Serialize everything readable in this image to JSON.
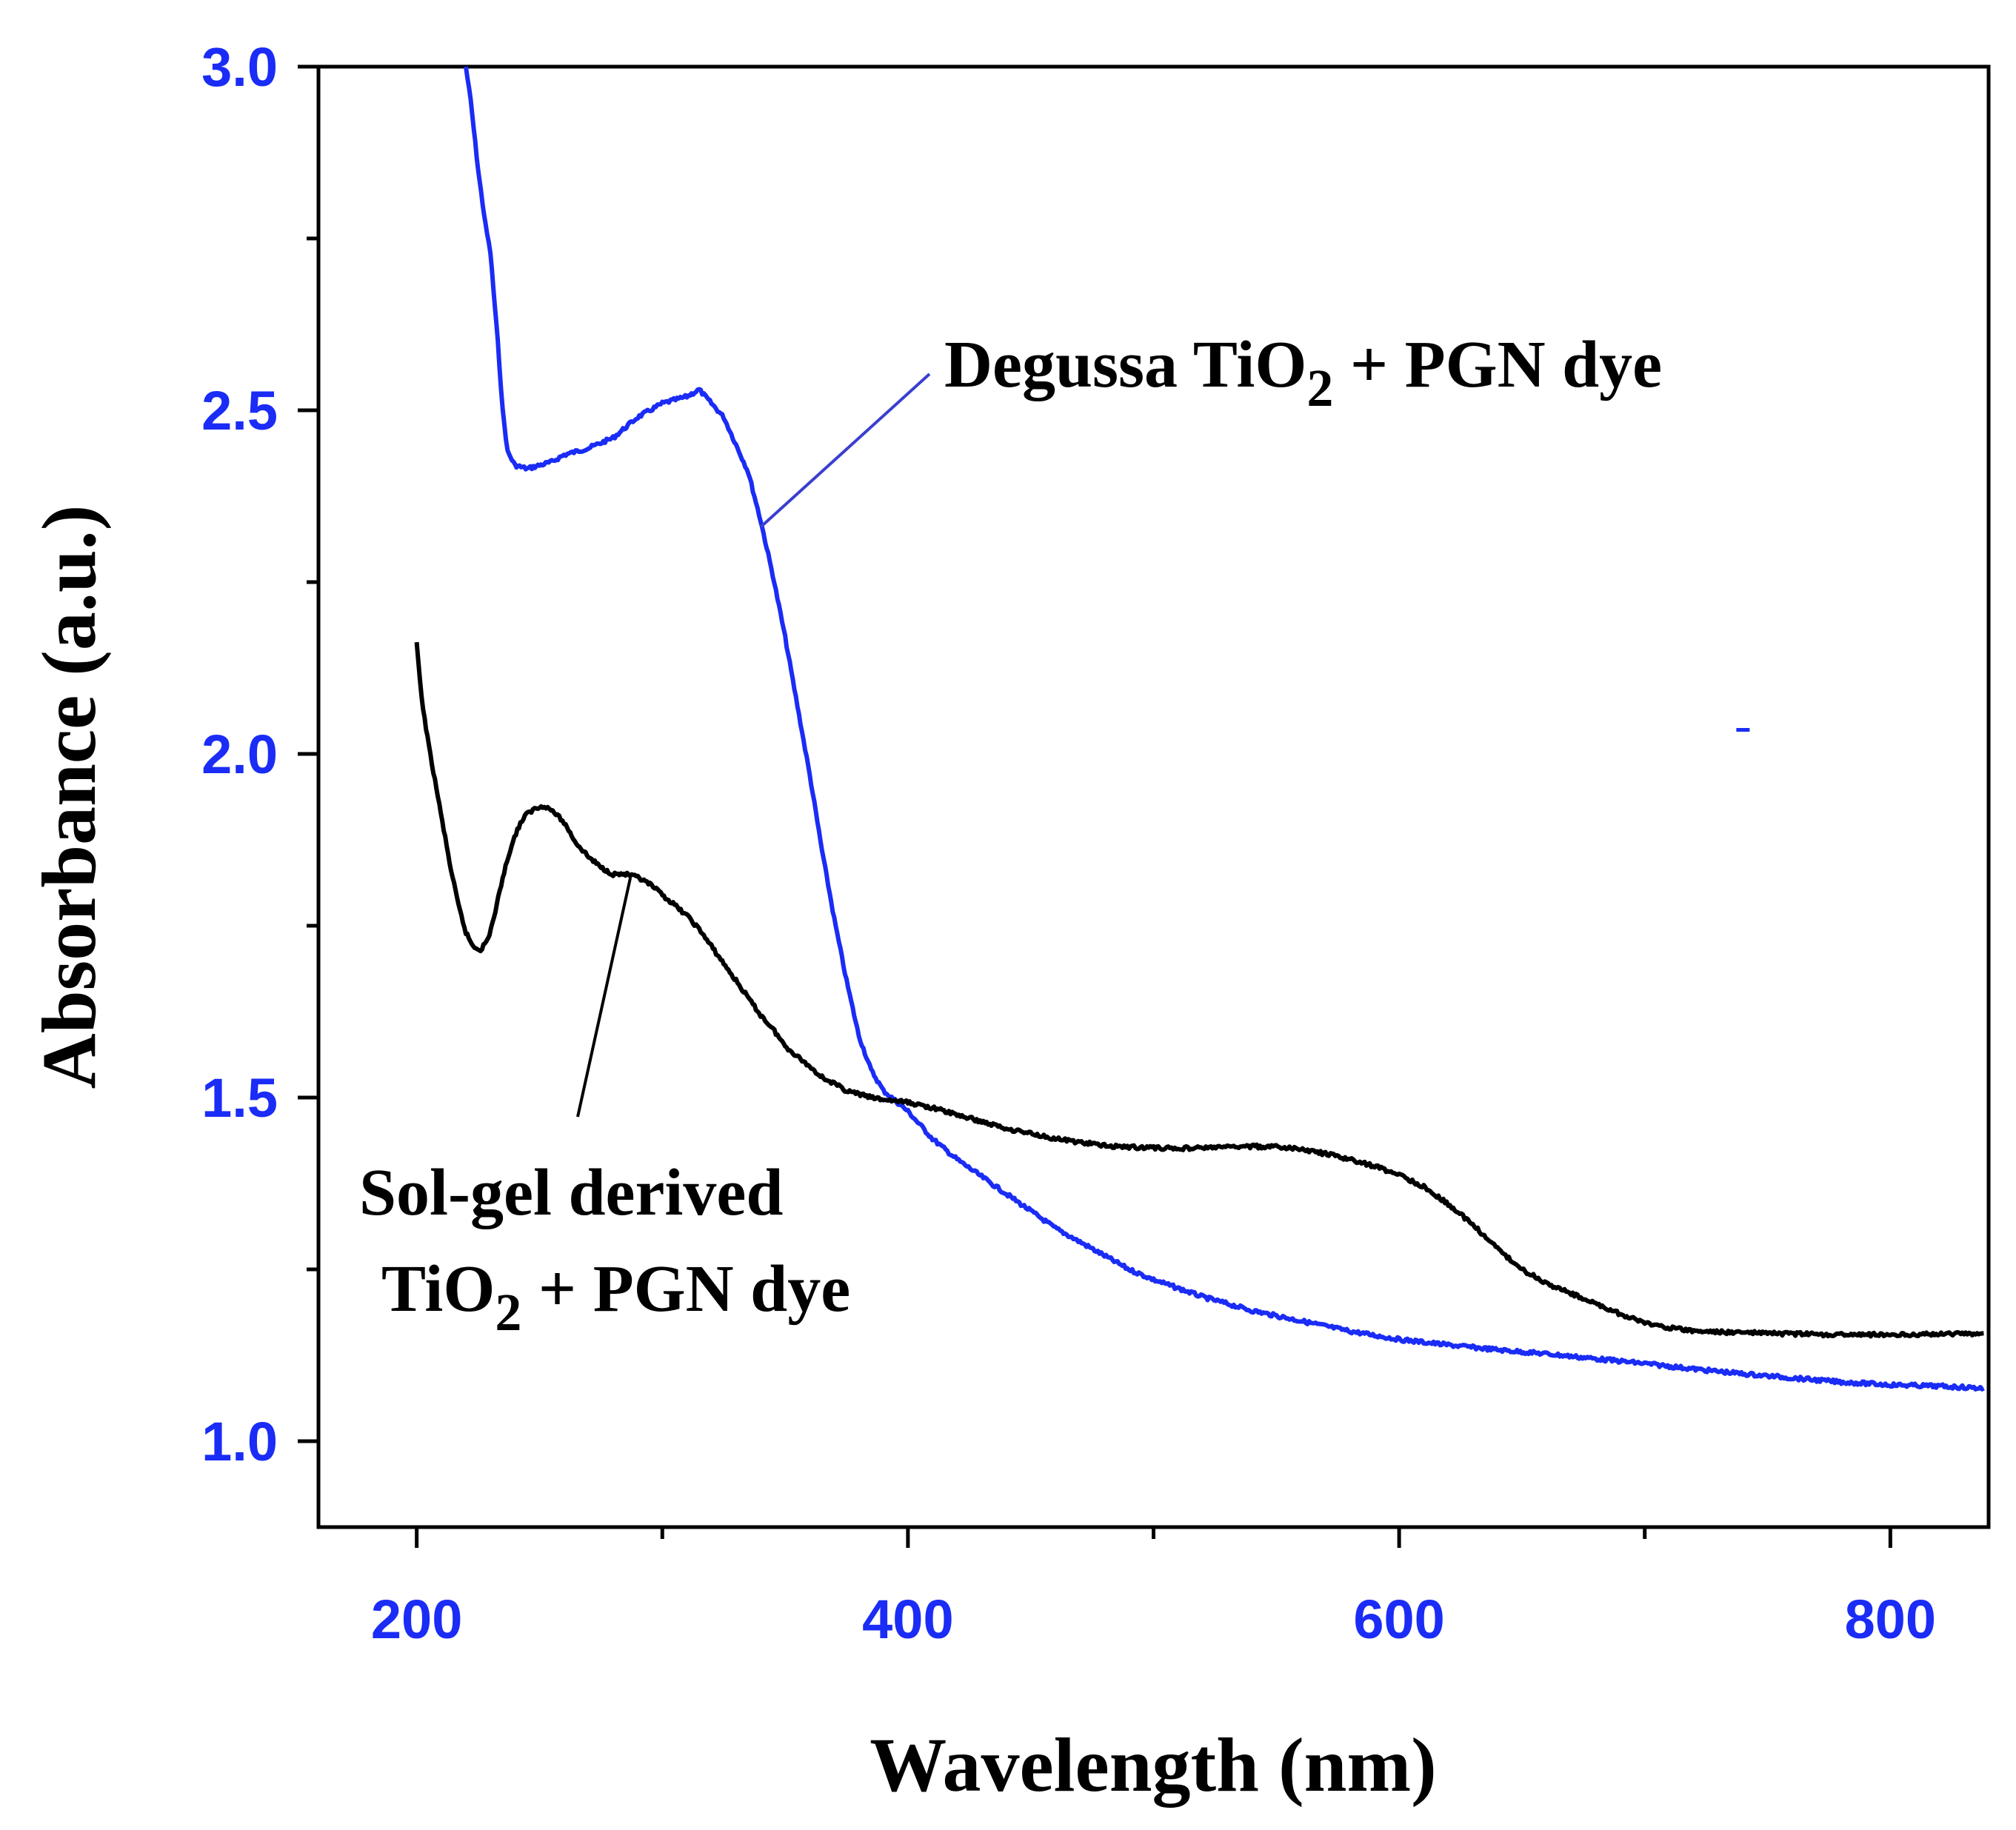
{
  "chart_data": {
    "type": "line",
    "title": "",
    "xlabel": "Wavelength (nm)",
    "ylabel": "Absorbance (a.u.)",
    "xlim": [
      160,
      840
    ],
    "ylim": [
      0.875,
      3.0
    ],
    "x_ticks": [
      200,
      400,
      600,
      800
    ],
    "x_tick_labels": [
      "200",
      "400",
      "600",
      "800"
    ],
    "y_ticks": [
      1.0,
      1.5,
      2.0,
      2.5,
      3.0
    ],
    "y_tick_labels": [
      "1.0",
      "1.5",
      "2.0",
      "2.5",
      "3.0"
    ],
    "grid": false,
    "tick_label_color": "#1a2cf5",
    "series": [
      {
        "name": "Degussa TiO2 + PGN dye",
        "color": "#1a2cf5",
        "points": [
          [
            220,
            3.0
          ],
          [
            222,
            2.95
          ],
          [
            225,
            2.85
          ],
          [
            228,
            2.77
          ],
          [
            230,
            2.73
          ],
          [
            233,
            2.6
          ],
          [
            235,
            2.5
          ],
          [
            237,
            2.44
          ],
          [
            240,
            2.42
          ],
          [
            245,
            2.415
          ],
          [
            250,
            2.42
          ],
          [
            255,
            2.425
          ],
          [
            260,
            2.435
          ],
          [
            270,
            2.445
          ],
          [
            280,
            2.46
          ],
          [
            290,
            2.49
          ],
          [
            300,
            2.51
          ],
          [
            310,
            2.52
          ],
          [
            315,
            2.53
          ],
          [
            320,
            2.51
          ],
          [
            325,
            2.49
          ],
          [
            330,
            2.45
          ],
          [
            335,
            2.41
          ],
          [
            340,
            2.34
          ],
          [
            345,
            2.26
          ],
          [
            350,
            2.17
          ],
          [
            355,
            2.07
          ],
          [
            360,
            1.97
          ],
          [
            365,
            1.86
          ],
          [
            370,
            1.76
          ],
          [
            375,
            1.67
          ],
          [
            380,
            1.59
          ],
          [
            385,
            1.54
          ],
          [
            390,
            1.51
          ],
          [
            400,
            1.48
          ],
          [
            410,
            1.44
          ],
          [
            420,
            1.41
          ],
          [
            430,
            1.385
          ],
          [
            440,
            1.36
          ],
          [
            450,
            1.335
          ],
          [
            460,
            1.31
          ],
          [
            470,
            1.29
          ],
          [
            480,
            1.27
          ],
          [
            490,
            1.25
          ],
          [
            500,
            1.235
          ],
          [
            520,
            1.21
          ],
          [
            540,
            1.19
          ],
          [
            560,
            1.175
          ],
          [
            580,
            1.16
          ],
          [
            600,
            1.148
          ],
          [
            620,
            1.14
          ],
          [
            640,
            1.133
          ],
          [
            660,
            1.127
          ],
          [
            680,
            1.12
          ],
          [
            700,
            1.113
          ],
          [
            720,
            1.105
          ],
          [
            740,
            1.098
          ],
          [
            760,
            1.092
          ],
          [
            780,
            1.086
          ],
          [
            800,
            1.082
          ],
          [
            820,
            1.08
          ],
          [
            838,
            1.077
          ]
        ]
      },
      {
        "name": "Sol-gel derived TiO2 + PGN dye",
        "color": "#000000",
        "points": [
          [
            200,
            2.16
          ],
          [
            202,
            2.08
          ],
          [
            205,
            2.01
          ],
          [
            208,
            1.95
          ],
          [
            211,
            1.89
          ],
          [
            214,
            1.83
          ],
          [
            217,
            1.78
          ],
          [
            220,
            1.74
          ],
          [
            223,
            1.72
          ],
          [
            226,
            1.715
          ],
          [
            229,
            1.73
          ],
          [
            232,
            1.77
          ],
          [
            235,
            1.82
          ],
          [
            238,
            1.86
          ],
          [
            241,
            1.89
          ],
          [
            244,
            1.91
          ],
          [
            248,
            1.92
          ],
          [
            252,
            1.925
          ],
          [
            256,
            1.915
          ],
          [
            260,
            1.9
          ],
          [
            265,
            1.87
          ],
          [
            270,
            1.85
          ],
          [
            275,
            1.835
          ],
          [
            280,
            1.825
          ],
          [
            285,
            1.825
          ],
          [
            290,
            1.82
          ],
          [
            295,
            1.81
          ],
          [
            300,
            1.795
          ],
          [
            305,
            1.78
          ],
          [
            310,
            1.765
          ],
          [
            315,
            1.745
          ],
          [
            320,
            1.72
          ],
          [
            325,
            1.695
          ],
          [
            330,
            1.67
          ],
          [
            335,
            1.645
          ],
          [
            340,
            1.62
          ],
          [
            345,
            1.6
          ],
          [
            350,
            1.575
          ],
          [
            355,
            1.56
          ],
          [
            360,
            1.545
          ],
          [
            365,
            1.53
          ],
          [
            370,
            1.52
          ],
          [
            375,
            1.51
          ],
          [
            380,
            1.505
          ],
          [
            385,
            1.5
          ],
          [
            390,
            1.497
          ],
          [
            400,
            1.493
          ],
          [
            410,
            1.485
          ],
          [
            420,
            1.475
          ],
          [
            430,
            1.465
          ],
          [
            440,
            1.455
          ],
          [
            450,
            1.448
          ],
          [
            460,
            1.44
          ],
          [
            470,
            1.435
          ],
          [
            480,
            1.43
          ],
          [
            490,
            1.428
          ],
          [
            500,
            1.427
          ],
          [
            510,
            1.426
          ],
          [
            520,
            1.427
          ],
          [
            530,
            1.428
          ],
          [
            540,
            1.429
          ],
          [
            550,
            1.428
          ],
          [
            560,
            1.425
          ],
          [
            570,
            1.418
          ],
          [
            580,
            1.41
          ],
          [
            590,
            1.4
          ],
          [
            600,
            1.388
          ],
          [
            610,
            1.37
          ],
          [
            620,
            1.345
          ],
          [
            630,
            1.315
          ],
          [
            640,
            1.28
          ],
          [
            650,
            1.25
          ],
          [
            660,
            1.23
          ],
          [
            670,
            1.215
          ],
          [
            680,
            1.2
          ],
          [
            690,
            1.185
          ],
          [
            700,
            1.172
          ],
          [
            710,
            1.165
          ],
          [
            720,
            1.16
          ],
          [
            740,
            1.158
          ],
          [
            760,
            1.156
          ],
          [
            780,
            1.155
          ],
          [
            800,
            1.155
          ],
          [
            820,
            1.156
          ],
          [
            838,
            1.157
          ]
        ]
      }
    ],
    "annotations": [
      {
        "name": "degussa-label",
        "text": "Degussa TiO",
        "subscript": "2",
        "suffix": " + PGN dye",
        "points_to": [
          340,
          2.33
        ]
      },
      {
        "name": "solgel-label",
        "line1": "Sol-gel derived",
        "line2_text": "TiO",
        "line2_subscript": "2",
        "line2_suffix": " + PGN dye",
        "points_to": [
          287,
          1.82
        ]
      }
    ],
    "stray_mark": [
      740,
      2.035
    ]
  }
}
